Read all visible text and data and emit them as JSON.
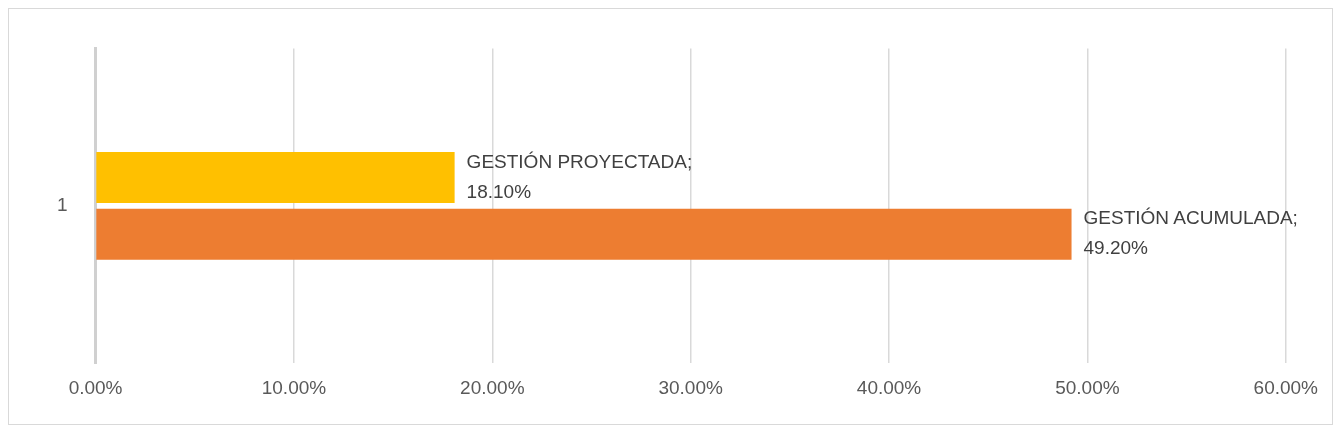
{
  "chart_data": {
    "type": "bar",
    "orientation": "horizontal",
    "categories": [
      "1"
    ],
    "series": [
      {
        "name": "GESTIÓN PROYECTADA;",
        "color": "#ffc000",
        "values": [
          18.1
        ],
        "value_labels": [
          "18.10%"
        ]
      },
      {
        "name": "GESTIÓN ACUMULADA;",
        "color": "#ed7d31",
        "values": [
          49.2
        ],
        "value_labels": [
          "49.20%"
        ]
      }
    ],
    "xlim": [
      0,
      60
    ],
    "xticks": [
      {
        "value": 0,
        "label": "0.00%"
      },
      {
        "value": 10,
        "label": "10.00%"
      },
      {
        "value": 20,
        "label": "20.00%"
      },
      {
        "value": 30,
        "label": "30.00%"
      },
      {
        "value": 40,
        "label": "40.00%"
      },
      {
        "value": 50,
        "label": "50.00%"
      },
      {
        "value": 60,
        "label": "60.00%"
      }
    ],
    "grid": "x",
    "legend": false
  }
}
